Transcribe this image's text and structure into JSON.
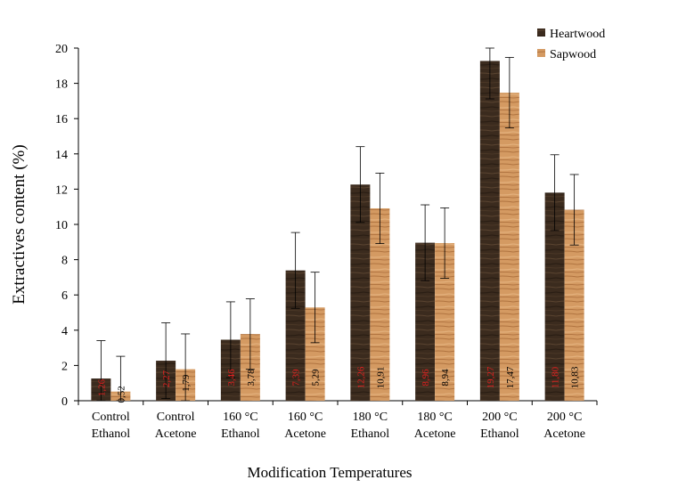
{
  "chart_data": {
    "type": "bar",
    "title": "",
    "xlabel": "Modification Temperatures",
    "ylabel": "Extractives content (%)",
    "ylim": [
      0,
      20
    ],
    "yticks": [
      0,
      2,
      4,
      6,
      8,
      10,
      12,
      14,
      16,
      18,
      20
    ],
    "categories": [
      [
        "Control",
        "Ethanol"
      ],
      [
        "Control",
        "Acetone"
      ],
      [
        "160 °C",
        "Ethanol"
      ],
      [
        "160 °C",
        "Acetone"
      ],
      [
        "180 °C",
        "Ethanol"
      ],
      [
        "180 °C",
        "Acetone"
      ],
      [
        "200 °C",
        "Ethanol"
      ],
      [
        "200 °C",
        "Acetone"
      ]
    ],
    "legend_position": "top-right",
    "series": [
      {
        "name": "Heartwood",
        "color": "#3b2b1e",
        "values": [
          1.26,
          2.27,
          3.46,
          7.39,
          12.26,
          8.96,
          19.27,
          11.8
        ],
        "labels": [
          "1,26",
          "2,27",
          "3,46",
          "7,39",
          "12,26",
          "8,96",
          "19,27",
          "11,80"
        ],
        "label_color": "#e02020",
        "error": [
          2.15,
          2.15,
          2.15,
          2.15,
          2.15,
          2.15,
          2.15,
          2.15
        ]
      },
      {
        "name": "Sapwood",
        "color": "#c98a52",
        "values": [
          0.52,
          1.79,
          3.78,
          5.29,
          10.91,
          8.94,
          17.47,
          10.83
        ],
        "labels": [
          "0,52",
          "1,79",
          "3,78",
          "5,29",
          "10,91",
          "8,94",
          "17,47",
          "10,83"
        ],
        "label_color": "#000000",
        "error": [
          2.0,
          2.0,
          2.0,
          2.0,
          2.0,
          2.0,
          2.0,
          2.0
        ]
      }
    ]
  }
}
